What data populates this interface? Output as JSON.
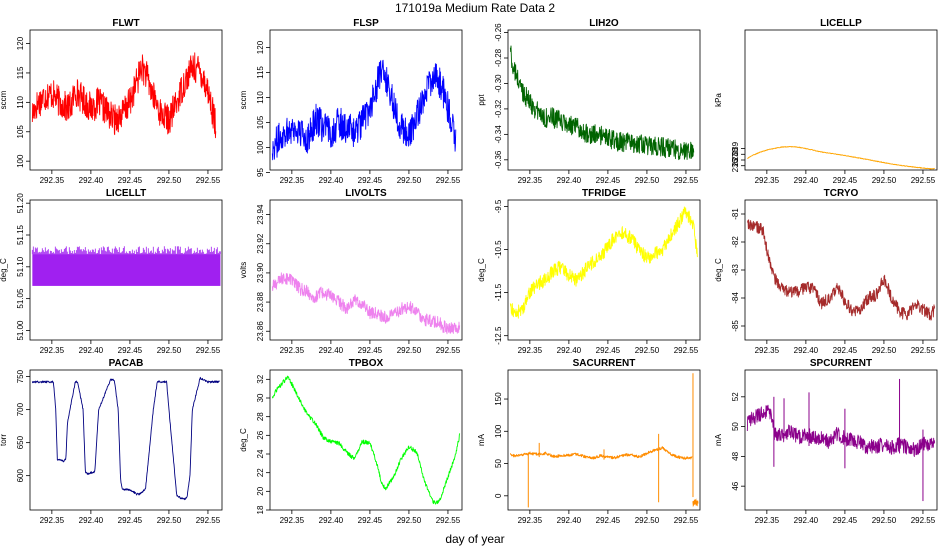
{
  "figure": {
    "title": "171019a   Medium Rate Data 2",
    "xlabel": "day of year",
    "xlim": [
      292.322,
      292.568
    ],
    "xticks": [
      292.35,
      292.4,
      292.45,
      292.5,
      292.55
    ],
    "xtick_labels": [
      "292.35",
      "292.40",
      "292.45",
      "292.50",
      "292.55"
    ]
  },
  "chart_data": [
    {
      "type": "line",
      "title": "FLWT",
      "ylabel": "sccm",
      "color": "#ff0000",
      "ylim": [
        98.5,
        122.3
      ],
      "yticks": [
        100,
        105,
        110,
        115,
        120
      ],
      "ytick_labels": [
        "100",
        "105",
        "110",
        "115",
        "120"
      ],
      "noise": 2.6,
      "x": [
        292.325,
        292.33,
        292.34,
        292.35,
        292.36,
        292.37,
        292.375,
        292.38,
        292.39,
        292.4,
        292.405,
        292.41,
        292.42,
        292.43,
        292.44,
        292.45,
        292.46,
        292.465,
        292.47,
        292.48,
        292.49,
        292.5,
        292.51,
        292.52,
        292.53,
        292.54,
        292.55,
        292.56
      ],
      "y": [
        108,
        109.5,
        111,
        111.5,
        110,
        109,
        109.5,
        112,
        110.5,
        109,
        109.5,
        110,
        108.5,
        107,
        108,
        110,
        114,
        116,
        115,
        111,
        108,
        107,
        110,
        113.5,
        116,
        115.5,
        112,
        106
      ]
    },
    {
      "type": "line",
      "title": "FLSP",
      "ylabel": "sccm",
      "color": "#0000ff",
      "ylim": [
        95.5,
        123.5
      ],
      "yticks": [
        95,
        100,
        105,
        110,
        115,
        120
      ],
      "ytick_labels": [
        "95",
        "100",
        "105",
        "110",
        "115",
        "120"
      ],
      "noise": 3.2,
      "x": [
        292.325,
        292.33,
        292.34,
        292.35,
        292.36,
        292.37,
        292.375,
        292.38,
        292.39,
        292.4,
        292.405,
        292.41,
        292.42,
        292.43,
        292.44,
        292.45,
        292.46,
        292.465,
        292.47,
        292.48,
        292.49,
        292.5,
        292.51,
        292.52,
        292.53,
        292.54,
        292.55,
        292.56
      ],
      "y": [
        100,
        101,
        103,
        104,
        103,
        102,
        103,
        106,
        104,
        103,
        104,
        105,
        104,
        103,
        105,
        108,
        113,
        115,
        114,
        109,
        104,
        102,
        106,
        111,
        114,
        113,
        108,
        101
      ]
    },
    {
      "type": "line",
      "title": "LIH2O",
      "ylabel": "ppt",
      "color": "#006400",
      "ylim": [
        -0.368,
        -0.258
      ],
      "yticks": [
        -0.36,
        -0.34,
        -0.32,
        -0.3,
        -0.28,
        -0.26
      ],
      "ytick_labels": [
        "-0.36",
        "-0.34",
        "-0.32",
        "-0.30",
        "-0.28",
        "-0.26"
      ],
      "noise": 0.008,
      "x": [
        292.325,
        292.327,
        292.33,
        292.34,
        292.35,
        292.36,
        292.37,
        292.38,
        292.39,
        292.4,
        292.41,
        292.42,
        292.43,
        292.44,
        292.45,
        292.46,
        292.47,
        292.48,
        292.49,
        292.5,
        292.51,
        292.52,
        292.53,
        292.54,
        292.55,
        292.56
      ],
      "y": [
        -0.27,
        -0.285,
        -0.29,
        -0.305,
        -0.315,
        -0.322,
        -0.327,
        -0.327,
        -0.33,
        -0.333,
        -0.335,
        -0.338,
        -0.34,
        -0.341,
        -0.343,
        -0.345,
        -0.347,
        -0.346,
        -0.348,
        -0.349,
        -0.35,
        -0.35,
        -0.351,
        -0.352,
        -0.352,
        -0.354
      ]
    },
    {
      "type": "line",
      "title": "LICELLP",
      "ylabel": "kPa",
      "color": "#ffa500",
      "ylim": [
        235.25,
        259.75
      ],
      "yticks": [
        236,
        237,
        238,
        239
      ],
      "ytick_labels": [
        "236",
        "237",
        "238",
        "239"
      ],
      "noise": 0.06,
      "x": [
        292.325,
        292.33,
        292.34,
        292.35,
        292.36,
        292.37,
        292.38,
        292.39,
        292.4,
        292.41,
        292.42,
        292.43,
        292.44,
        292.45,
        292.46,
        292.47,
        292.48,
        292.49,
        292.5,
        292.51,
        292.52,
        292.53,
        292.54,
        292.55,
        292.56,
        292.565
      ],
      "y": [
        237.25,
        237.7,
        238.3,
        238.75,
        239.05,
        239.28,
        239.32,
        239.25,
        239.0,
        238.7,
        238.4,
        238.2,
        238.0,
        237.8,
        237.55,
        237.3,
        237.05,
        236.8,
        236.55,
        236.3,
        236.1,
        235.9,
        235.75,
        235.6,
        235.45,
        235.5
      ]
    },
    {
      "type": "line",
      "title": "LICELLT",
      "ylabel": "deg_C",
      "color": "#a020f0",
      "ylim": [
        50.985,
        51.205
      ],
      "yticks": [
        51.0,
        51.05,
        51.1,
        51.15,
        51.2
      ],
      "ytick_labels": [
        "51.00",
        "51.05",
        "51.10",
        "51.15",
        "51.20"
      ],
      "band": [
        51.07,
        51.12
      ],
      "x": [
        292.325,
        292.566
      ],
      "y": [
        51.095,
        51.095
      ]
    },
    {
      "type": "line",
      "title": "LIVOLTS",
      "ylabel": "volts",
      "color": "#ee82ee",
      "ylim": [
        23.854,
        23.95
      ],
      "yticks": [
        23.86,
        23.88,
        23.9,
        23.92,
        23.94
      ],
      "ytick_labels": [
        "23.86",
        "23.88",
        "23.90",
        "23.92",
        "23.94"
      ],
      "noise": 0.0045,
      "x": [
        292.325,
        292.33,
        292.34,
        292.35,
        292.36,
        292.37,
        292.38,
        292.39,
        292.4,
        292.41,
        292.42,
        292.43,
        292.44,
        292.45,
        292.46,
        292.47,
        292.48,
        292.49,
        292.5,
        292.51,
        292.52,
        292.53,
        292.54,
        292.55,
        292.56,
        292.565
      ],
      "y": [
        23.89,
        23.893,
        23.897,
        23.895,
        23.889,
        23.887,
        23.883,
        23.887,
        23.884,
        23.88,
        23.876,
        23.881,
        23.879,
        23.873,
        23.872,
        23.869,
        23.872,
        23.875,
        23.877,
        23.874,
        23.868,
        23.867,
        23.865,
        23.861,
        23.862,
        23.864
      ]
    },
    {
      "type": "line",
      "title": "TFRIDGE",
      "ylabel": "deg_C",
      "color": "#ffff00",
      "ylim": [
        -12.6,
        -9.35
      ],
      "yticks": [
        -12.5,
        -11.5,
        -10.5,
        -9.5
      ],
      "ytick_labels": [
        "-12.5",
        "-11.5",
        "-10.5",
        "-9.5"
      ],
      "noise": 0.16,
      "x": [
        292.325,
        292.33,
        292.34,
        292.35,
        292.36,
        292.37,
        292.38,
        292.39,
        292.4,
        292.41,
        292.42,
        292.43,
        292.44,
        292.45,
        292.46,
        292.47,
        292.48,
        292.49,
        292.5,
        292.51,
        292.52,
        292.53,
        292.54,
        292.55,
        292.56,
        292.565
      ],
      "y": [
        -11.8,
        -12.0,
        -11.9,
        -11.5,
        -11.3,
        -11.2,
        -11.0,
        -10.9,
        -11.1,
        -11.2,
        -11.0,
        -10.8,
        -10.7,
        -10.4,
        -10.2,
        -10.1,
        -10.25,
        -10.5,
        -10.7,
        -10.6,
        -10.5,
        -10.2,
        -9.9,
        -9.6,
        -10.0,
        -10.7
      ]
    },
    {
      "type": "line",
      "title": "TCRYO",
      "ylabel": "deg_C",
      "color": "#a52a2a",
      "ylim": [
        -85.5,
        -80.5
      ],
      "yticks": [
        -85,
        -84,
        -83,
        -82,
        -81
      ],
      "ytick_labels": [
        "-85",
        "-84",
        "-83",
        "-82",
        "-81"
      ],
      "noise": 0.22,
      "x": [
        292.325,
        292.33,
        292.34,
        292.345,
        292.35,
        292.36,
        292.37,
        292.38,
        292.39,
        292.4,
        292.41,
        292.42,
        292.43,
        292.44,
        292.45,
        292.46,
        292.47,
        292.48,
        292.49,
        292.5,
        292.51,
        292.52,
        292.53,
        292.54,
        292.55,
        292.56,
        292.565
      ],
      "y": [
        -81.4,
        -81.4,
        -81.5,
        -81.6,
        -82.3,
        -83.3,
        -83.7,
        -83.8,
        -83.8,
        -83.6,
        -83.7,
        -84.2,
        -84.0,
        -83.6,
        -84.1,
        -84.5,
        -84.4,
        -84.0,
        -83.9,
        -83.3,
        -84.0,
        -84.5,
        -84.6,
        -84.2,
        -84.4,
        -84.6,
        -84.4
      ]
    },
    {
      "type": "line",
      "title": "PACAB",
      "ylabel": "torr",
      "color": "#000080",
      "ylim": [
        548,
        760
      ],
      "yticks": [
        600,
        650,
        700,
        750
      ],
      "ytick_labels": [
        "600",
        "650",
        "700",
        "750"
      ],
      "noise": 1.5,
      "x": [
        292.325,
        292.34,
        292.352,
        292.355,
        292.357,
        292.365,
        292.368,
        292.37,
        292.38,
        292.383,
        292.39,
        292.393,
        292.396,
        292.405,
        292.41,
        292.425,
        292.428,
        292.43,
        292.435,
        292.438,
        292.44,
        292.45,
        292.455,
        292.458,
        292.462,
        292.47,
        292.48,
        292.485,
        292.492,
        292.497,
        292.5,
        292.51,
        292.515,
        292.52,
        292.523,
        292.527,
        292.53,
        292.54,
        292.55,
        292.565
      ],
      "y": [
        742,
        742,
        742,
        700,
        625,
        622,
        626,
        680,
        742,
        742,
        700,
        605,
        603,
        606,
        700,
        745,
        746,
        745,
        700,
        595,
        580,
        578,
        575,
        572,
        572,
        580,
        700,
        742,
        742,
        742,
        700,
        570,
        566,
        565,
        566,
        600,
        700,
        748,
        742,
        742
      ]
    },
    {
      "type": "line",
      "title": "TPBOX",
      "ylabel": "deg_C",
      "color": "#00ff00",
      "ylim": [
        18,
        33
      ],
      "yticks": [
        18,
        20,
        22,
        24,
        26,
        28,
        30,
        32
      ],
      "ytick_labels": [
        "18",
        "20",
        "22",
        "24",
        "26",
        "28",
        "30",
        "32"
      ],
      "noise": 0.22,
      "x": [
        292.325,
        292.33,
        292.34,
        292.345,
        292.35,
        292.36,
        292.37,
        292.38,
        292.39,
        292.4,
        292.41,
        292.42,
        292.43,
        292.44,
        292.45,
        292.46,
        292.465,
        292.47,
        292.48,
        292.49,
        292.5,
        292.51,
        292.52,
        292.53,
        292.535,
        292.54,
        292.55,
        292.56,
        292.565
      ],
      "y": [
        30,
        30.8,
        31.8,
        32.3,
        31.5,
        29.8,
        28.2,
        27.3,
        25.8,
        25.3,
        25.2,
        24.2,
        23.5,
        25.3,
        25.2,
        22.7,
        20.8,
        20.3,
        21.5,
        23.5,
        24.8,
        24.2,
        21.0,
        19.0,
        18.7,
        19.2,
        21.5,
        24.0,
        26.0
      ]
    },
    {
      "type": "line",
      "title": "SACURRENT",
      "ylabel": "mA",
      "color": "#ff8c00",
      "ylim": [
        -22,
        195
      ],
      "yticks": [
        0,
        50,
        100,
        150
      ],
      "ytick_labels": [
        "0",
        "50",
        "100",
        "150"
      ],
      "noise": 2.2,
      "x": [
        292.325,
        292.33,
        292.34,
        292.35,
        292.36,
        292.37,
        292.38,
        292.39,
        292.4,
        292.41,
        292.42,
        292.43,
        292.44,
        292.45,
        292.46,
        292.47,
        292.48,
        292.49,
        292.5,
        292.51,
        292.52,
        292.53,
        292.54,
        292.55,
        292.558
      ],
      "y": [
        64,
        62,
        63,
        66,
        64,
        66,
        61,
        62,
        63,
        65,
        61,
        58,
        62,
        60,
        59,
        63,
        64,
        60,
        66,
        71,
        74,
        65,
        60,
        58,
        59
      ],
      "spikes": [
        {
          "x": 292.348,
          "low": -18,
          "high": 65
        },
        {
          "x": 292.362,
          "low": 60,
          "high": 82
        },
        {
          "x": 292.445,
          "low": 56,
          "high": 72
        },
        {
          "x": 292.515,
          "low": -10,
          "high": 96
        },
        {
          "x": 292.559,
          "low": -2,
          "high": 190
        }
      ],
      "tail": {
        "x": [
          292.559,
          292.565
        ],
        "y": [
          -10,
          -10
        ],
        "spread": 4
      }
    },
    {
      "type": "line",
      "title": "SPCURRENT",
      "ylabel": "mA",
      "color": "#8b008b",
      "ylim": [
        44.4,
        53.8
      ],
      "yticks": [
        46,
        48,
        50,
        52
      ],
      "ytick_labels": [
        "46",
        "48",
        "50",
        "52"
      ],
      "noise": 0.5,
      "x": [
        292.325,
        292.33,
        292.34,
        292.35,
        292.355,
        292.36,
        292.37,
        292.38,
        292.39,
        292.4,
        292.41,
        292.42,
        292.43,
        292.44,
        292.45,
        292.46,
        292.47,
        292.48,
        292.49,
        292.5,
        292.51,
        292.52,
        292.53,
        292.54,
        292.55,
        292.56,
        292.565
      ],
      "y": [
        50.2,
        50.5,
        50.8,
        51.0,
        50.8,
        49.5,
        49.4,
        49.7,
        49.3,
        49.5,
        49.3,
        49.2,
        49.0,
        49.5,
        49.2,
        49.1,
        48.9,
        48.6,
        48.7,
        48.8,
        48.6,
        48.8,
        48.6,
        48.4,
        48.8,
        48.9,
        49.2
      ],
      "spikes": [
        {
          "x": 292.359,
          "low": 47.3,
          "high": 52.0
        },
        {
          "x": 292.372,
          "low": 49.2,
          "high": 51.9
        },
        {
          "x": 292.404,
          "low": 48.7,
          "high": 52.3
        },
        {
          "x": 292.45,
          "low": 47.2,
          "high": 51.2
        },
        {
          "x": 292.52,
          "low": 48.2,
          "high": 53.2
        },
        {
          "x": 292.55,
          "low": 45.0,
          "high": 49.8
        }
      ]
    }
  ]
}
